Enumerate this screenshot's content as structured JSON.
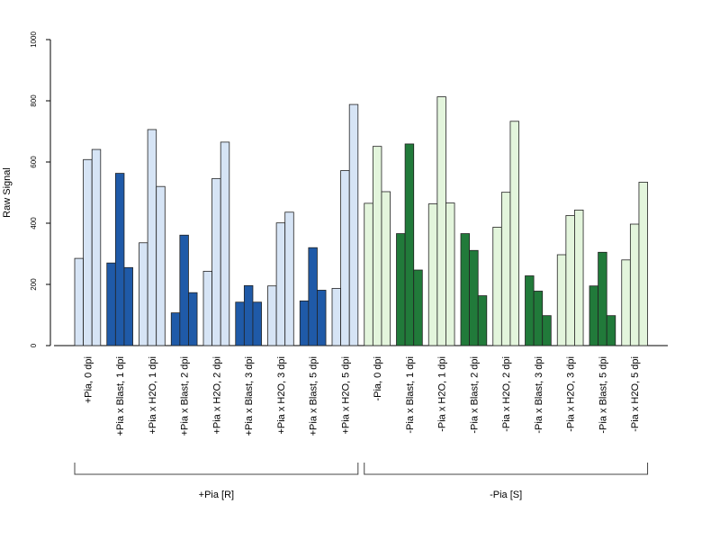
{
  "chart_data": {
    "type": "bar",
    "ylabel": "Raw Signal",
    "ylim": [
      0,
      1000
    ],
    "yticks": [
      0,
      200,
      400,
      600,
      800,
      1000
    ],
    "replicates_per_category": 3,
    "categories": [
      "+Pia, 0 dpi",
      "+Pia x Blast, 1 dpi",
      "+Pia x H2O, 1 dpi",
      "+Pia x Blast, 2 dpi",
      "+Pia x H2O, 2 dpi",
      "+Pia x Blast, 3 dpi",
      "+Pia x H2O, 3 dpi",
      "+Pia x Blast, 5 dpi",
      "+Pia x H2O, 5 dpi",
      "-Pia, 0 dpi",
      "-Pia x Blast, 1 dpi",
      "-Pia x H2O, 1 dpi",
      "-Pia x Blast, 2 dpi",
      "-Pia x H2O, 2 dpi",
      "-Pia x Blast, 3 dpi",
      "-Pia x H2O, 3 dpi",
      "-Pia x Blast, 5 dpi",
      "-Pia x H2O, 5 dpi"
    ],
    "values": [
      [
        285,
        608,
        641
      ],
      [
        270,
        563,
        255
      ],
      [
        336,
        706,
        520
      ],
      [
        107,
        361,
        173
      ],
      [
        243,
        546,
        665
      ],
      [
        142,
        196,
        142
      ],
      [
        195,
        401,
        436
      ],
      [
        146,
        320,
        181
      ],
      [
        187,
        572,
        788
      ],
      [
        465,
        651,
        503
      ],
      [
        366,
        659,
        247
      ],
      [
        463,
        813,
        466
      ],
      [
        366,
        311,
        163
      ],
      [
        387,
        501,
        733
      ],
      [
        228,
        178,
        98
      ],
      [
        297,
        425,
        443
      ],
      [
        195,
        305,
        98
      ],
      [
        280,
        397,
        534
      ]
    ],
    "bar_colors": [
      "#d6e4f5",
      "#1f5aa8",
      "#d6e4f5",
      "#1f5aa8",
      "#d6e4f5",
      "#1f5aa8",
      "#d6e4f5",
      "#1f5aa8",
      "#d6e4f5",
      "#e3f5dc",
      "#217a3a",
      "#e3f5dc",
      "#217a3a",
      "#e3f5dc",
      "#217a3a",
      "#e3f5dc",
      "#217a3a",
      "#e3f5dc"
    ],
    "groups": [
      {
        "label": "+Pia [R]",
        "first_category": 0,
        "last_category": 8
      },
      {
        "label": "-Pia [S]",
        "first_category": 9,
        "last_category": 17
      }
    ],
    "grid": false,
    "legend": "none"
  }
}
